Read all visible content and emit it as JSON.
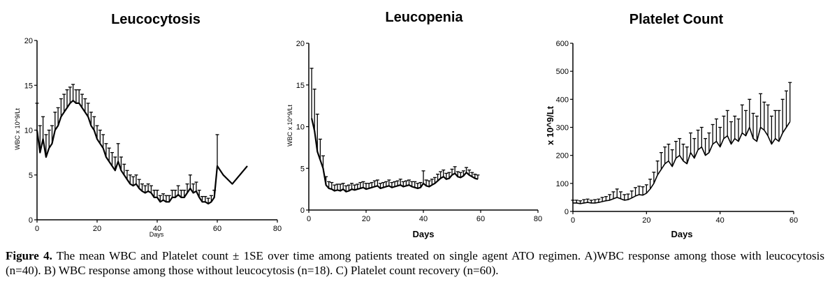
{
  "chart_data": [
    {
      "type": "line",
      "title": "Leucocytosis",
      "xlabel": "Days",
      "ylabel": "WBC x 10^9/Lt",
      "xlim": [
        0,
        80
      ],
      "ylim": [
        0,
        20
      ],
      "xticks": [
        "0",
        "20",
        "40",
        "60",
        "80"
      ],
      "yticks": [
        "0",
        "5",
        "10",
        "15",
        "20"
      ],
      "series": [
        {
          "x": [
            0,
            1,
            2,
            3,
            4,
            5,
            6,
            7,
            8,
            9,
            10,
            11,
            12,
            13,
            14,
            15,
            16,
            17,
            18,
            19,
            20,
            21,
            22,
            23,
            24,
            25,
            26,
            27,
            28,
            29,
            30,
            31,
            32,
            33,
            34,
            35,
            36,
            37,
            38,
            39,
            40,
            41,
            42,
            43,
            44,
            45,
            46,
            47,
            48,
            49,
            50,
            51,
            52,
            53,
            54,
            55,
            56,
            57,
            58,
            59,
            60,
            62,
            65,
            70
          ],
          "y": [
            10,
            7.5,
            9,
            7,
            8,
            8.5,
            10,
            10.5,
            11.5,
            12,
            12.5,
            13,
            13.3,
            13,
            13,
            12.5,
            12,
            11.5,
            10.5,
            10,
            9,
            8.5,
            8,
            7,
            6.5,
            6,
            5.5,
            6.5,
            5.5,
            5,
            4.5,
            4,
            3.8,
            4,
            3.5,
            3.2,
            3,
            3.2,
            3,
            2.5,
            2.5,
            2,
            2.2,
            2,
            2,
            2.5,
            2.5,
            2.8,
            2.5,
            2.5,
            3,
            3.5,
            3,
            3.2,
            2.5,
            2,
            2,
            1.8,
            2,
            2.5,
            6,
            5,
            4,
            6
          ],
          "err": [
            3,
            3,
            2.5,
            2.5,
            2,
            2,
            2,
            2,
            2,
            2,
            2,
            1.8,
            1.8,
            1.5,
            1.5,
            1.5,
            1.5,
            1.5,
            1.5,
            1.5,
            1.5,
            1.5,
            1.5,
            1.5,
            1.5,
            1.5,
            1.5,
            2,
            1.5,
            1.2,
            1,
            1,
            1,
            1,
            1,
            0.8,
            0.8,
            0.8,
            0.8,
            0.8,
            0.8,
            0.7,
            0.7,
            0.7,
            0.7,
            0.8,
            0.8,
            1,
            0.8,
            0.8,
            1,
            1.5,
            1,
            1,
            0.8,
            0.6,
            0.6,
            0.6,
            0.7,
            0.8,
            3.5,
            0,
            0,
            0
          ]
        }
      ]
    },
    {
      "type": "line",
      "title": "Leucopenia",
      "xlabel": "Days",
      "ylabel": "WBC x 10^9/Lt",
      "xlim": [
        0,
        80
      ],
      "ylim": [
        0,
        20
      ],
      "xticks": [
        "0",
        "20",
        "40",
        "60",
        "80"
      ],
      "yticks": [
        "0",
        "5",
        "10",
        "15",
        "20"
      ],
      "series": [
        {
          "x": [
            1,
            2,
            3,
            4,
            5,
            6,
            7,
            8,
            9,
            10,
            11,
            12,
            13,
            14,
            15,
            16,
            17,
            18,
            19,
            20,
            21,
            22,
            23,
            24,
            25,
            26,
            27,
            28,
            29,
            30,
            31,
            32,
            33,
            34,
            35,
            36,
            37,
            38,
            39,
            40,
            41,
            42,
            43,
            44,
            45,
            46,
            47,
            48,
            49,
            50,
            51,
            52,
            53,
            54,
            55,
            56,
            57,
            58,
            59
          ],
          "y": [
            11,
            9.5,
            7,
            6,
            5,
            3,
            2.6,
            2.5,
            2.3,
            2.4,
            2.3,
            2.5,
            2.2,
            2.3,
            2.5,
            2.4,
            2.5,
            2.6,
            2.7,
            2.5,
            2.6,
            2.7,
            2.8,
            2.9,
            2.6,
            2.7,
            2.8,
            2.9,
            2.7,
            2.8,
            2.9,
            3,
            2.8,
            2.9,
            3,
            2.8,
            2.7,
            2.6,
            2.7,
            3.2,
            2.9,
            2.8,
            3,
            3.2,
            3.5,
            3.8,
            4,
            3.7,
            3.8,
            4.2,
            4.4,
            4,
            3.9,
            4.1,
            4.5,
            4.2,
            4,
            3.8,
            3.7
          ],
          "err": [
            6,
            5,
            4.5,
            2.5,
            1.5,
            1,
            0.8,
            0.8,
            0.7,
            0.7,
            0.8,
            0.7,
            0.7,
            0.7,
            0.7,
            0.6,
            0.6,
            0.7,
            0.7,
            0.7,
            0.6,
            0.6,
            0.7,
            0.7,
            0.6,
            0.6,
            0.6,
            0.7,
            0.6,
            0.6,
            0.6,
            0.7,
            0.6,
            0.6,
            0.6,
            0.6,
            0.7,
            0.6,
            0.6,
            1.5,
            0.7,
            0.7,
            0.7,
            0.7,
            0.8,
            0.8,
            0.8,
            0.7,
            0.7,
            0.7,
            0.8,
            0.6,
            0.6,
            0.6,
            0.6,
            0.6,
            0.5,
            0.5,
            0.5
          ]
        }
      ]
    },
    {
      "type": "line",
      "title": "Platelet Count",
      "xlabel": "Days",
      "ylabel": "x 10^9/Lt",
      "xlim": [
        0,
        60
      ],
      "ylim": [
        0,
        600
      ],
      "xticks": [
        "0",
        "20",
        "40",
        "60"
      ],
      "yticks": [
        "0",
        "100",
        "200",
        "300",
        "400",
        "500",
        "600"
      ],
      "series": [
        {
          "x": [
            0,
            1,
            2,
            3,
            4,
            5,
            6,
            7,
            8,
            9,
            10,
            11,
            12,
            13,
            14,
            15,
            16,
            17,
            18,
            19,
            20,
            21,
            22,
            23,
            24,
            25,
            26,
            27,
            28,
            29,
            30,
            31,
            32,
            33,
            34,
            35,
            36,
            37,
            38,
            39,
            40,
            41,
            42,
            43,
            44,
            45,
            46,
            47,
            48,
            49,
            50,
            51,
            52,
            53,
            54,
            55,
            56,
            57,
            58,
            59
          ],
          "y": [
            30,
            30,
            28,
            30,
            32,
            30,
            30,
            32,
            35,
            38,
            40,
            45,
            50,
            45,
            40,
            42,
            48,
            55,
            60,
            58,
            65,
            80,
            100,
            130,
            150,
            170,
            180,
            160,
            190,
            200,
            180,
            170,
            210,
            190,
            220,
            230,
            200,
            210,
            240,
            250,
            230,
            260,
            270,
            240,
            260,
            250,
            280,
            270,
            300,
            260,
            250,
            300,
            290,
            270,
            240,
            260,
            250,
            280,
            300,
            320
          ],
          "err": [
            10,
            10,
            10,
            12,
            12,
            10,
            12,
            12,
            15,
            15,
            20,
            25,
            30,
            25,
            20,
            20,
            25,
            30,
            30,
            30,
            30,
            35,
            40,
            50,
            60,
            60,
            60,
            60,
            60,
            60,
            60,
            60,
            70,
            70,
            70,
            70,
            60,
            70,
            70,
            80,
            70,
            80,
            90,
            80,
            80,
            80,
            100,
            90,
            100,
            90,
            90,
            120,
            100,
            110,
            100,
            100,
            110,
            120,
            130,
            140
          ]
        }
      ]
    }
  ],
  "caption": {
    "label": "Figure 4.",
    "text": "The mean WBC and Platelet count ± 1SE over time among patients treated on single agent ATO regimen. A)WBC response among those with leucocytosis (n=40). B) WBC response among those without leucocytosis (n=18). C) Platelet count recovery (n=60)."
  }
}
